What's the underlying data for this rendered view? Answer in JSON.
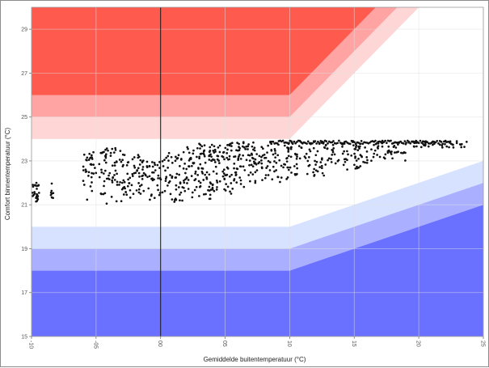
{
  "chart_data": {
    "type": "scatter",
    "xlabel": "Gemiddelde buitentemperatuur (°C)",
    "ylabel": "Comfort binnentemperatuur (°C)",
    "xlim": [
      -10,
      25
    ],
    "ylim": [
      15,
      30
    ],
    "x_ticks": [
      -10,
      -5,
      0,
      5,
      10,
      15,
      20,
      25
    ],
    "x_tick_labels": [
      "-10",
      "-05",
      "00",
      "05",
      "10",
      "15",
      "20",
      "25"
    ],
    "y_ticks": [
      15,
      17,
      19,
      21,
      23,
      25,
      27,
      29
    ],
    "y_tick_labels": [
      "15",
      "17",
      "19",
      "21",
      "23",
      "25",
      "27",
      "29"
    ],
    "grid": true,
    "reference_line_x": 0,
    "colors": {
      "warm_dark": "#ff5a4e",
      "warm_mid": "#ffa3a3",
      "warm_light": "#ffd6d6",
      "cool_light": "#d6e2ff",
      "cool_mid": "#aab0ff",
      "cool_dark": "#6a70ff",
      "points": "#111111"
    },
    "comfort_bands": [
      {
        "band": "warm_light",
        "lower": [
          [
            -10,
            24
          ],
          [
            10,
            24
          ],
          [
            25,
            33
          ]
        ],
        "upper": [
          [
            -10,
            25
          ],
          [
            10,
            25
          ],
          [
            25,
            34
          ]
        ]
      },
      {
        "band": "warm_mid",
        "lower": [
          [
            -10,
            25
          ],
          [
            10,
            25
          ],
          [
            25,
            34
          ]
        ],
        "upper": [
          [
            -10,
            26
          ],
          [
            10,
            26
          ],
          [
            25,
            35
          ]
        ]
      },
      {
        "band": "warm_dark",
        "lower": [
          [
            -10,
            26
          ],
          [
            10,
            26
          ],
          [
            25,
            35
          ]
        ],
        "upper": [
          [
            -10,
            30
          ],
          [
            25,
            30
          ]
        ]
      },
      {
        "band": "cool_light",
        "lower": [
          [
            -10,
            19
          ],
          [
            10,
            19
          ],
          [
            25,
            22
          ]
        ],
        "upper": [
          [
            -10,
            20
          ],
          [
            10,
            20
          ],
          [
            25,
            23
          ]
        ]
      },
      {
        "band": "cool_mid",
        "lower": [
          [
            -10,
            18
          ],
          [
            10,
            18
          ],
          [
            25,
            21
          ]
        ],
        "upper": [
          [
            -10,
            19
          ],
          [
            10,
            19
          ],
          [
            25,
            22
          ]
        ]
      },
      {
        "band": "cool_dark",
        "lower": [
          [
            -10,
            15
          ],
          [
            25,
            15
          ]
        ],
        "upper": [
          [
            -10,
            18
          ],
          [
            10,
            18
          ],
          [
            25,
            21
          ]
        ]
      }
    ],
    "point_clusters": [
      {
        "x_range": [
          -10,
          -9.4
        ],
        "y_range": [
          21.0,
          22.0
        ],
        "count": 26
      },
      {
        "x_range": [
          -8.6,
          -8.2
        ],
        "y_range": [
          21.3,
          22.0
        ],
        "count": 8
      },
      {
        "x_range": [
          -6.0,
          -5.0
        ],
        "y_range": [
          21.2,
          23.4
        ],
        "count": 34
      },
      {
        "x_range": [
          -4.8,
          -3.0
        ],
        "y_range": [
          21.0,
          23.6
        ],
        "count": 60
      },
      {
        "x_range": [
          -3.0,
          -1.0
        ],
        "y_range": [
          21.3,
          23.3
        ],
        "count": 70
      },
      {
        "x_range": [
          -1.0,
          0.0
        ],
        "y_range": [
          21.2,
          23.0
        ],
        "count": 30
      },
      {
        "x_range": [
          0.0,
          2.0
        ],
        "y_range": [
          21.1,
          23.4
        ],
        "count": 60
      },
      {
        "x_range": [
          2.0,
          4.0
        ],
        "y_range": [
          21.2,
          23.8
        ],
        "count": 90
      },
      {
        "x_range": [
          4.0,
          6.0
        ],
        "y_range": [
          21.5,
          23.9
        ],
        "count": 85
      },
      {
        "x_range": [
          6.0,
          8.0
        ],
        "y_range": [
          21.8,
          23.9
        ],
        "count": 70
      },
      {
        "x_range": [
          8.0,
          10.0
        ],
        "y_range": [
          22.0,
          23.9
        ],
        "count": 55
      },
      {
        "x_range": [
          10.0,
          13.0
        ],
        "y_range": [
          22.3,
          23.9
        ],
        "count": 70
      },
      {
        "x_range": [
          13.0,
          16.0
        ],
        "y_range": [
          22.6,
          23.9
        ],
        "count": 60
      },
      {
        "x_range": [
          16.0,
          19.0
        ],
        "y_range": [
          23.0,
          23.9
        ],
        "count": 45
      },
      {
        "x_range": [
          19.0,
          23.8
        ],
        "y_range": [
          23.6,
          23.9
        ],
        "count": 40
      }
    ],
    "upper_ridge": {
      "x_range": [
        8.5,
        22.5
      ],
      "y": 23.85,
      "count": 130
    }
  }
}
